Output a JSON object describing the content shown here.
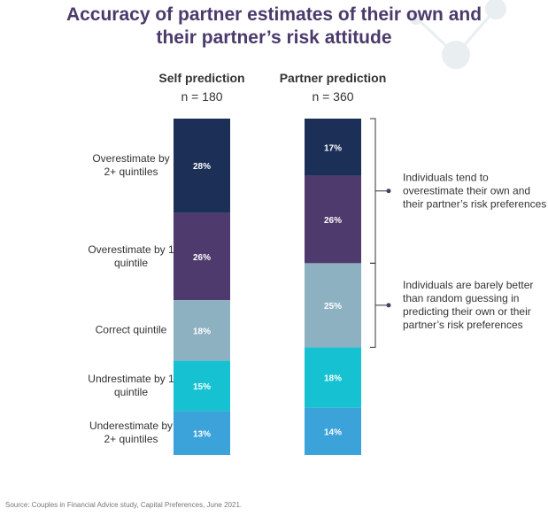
{
  "chart_data": {
    "type": "stacked-bar",
    "title": [
      "Accuracy of partner estimates of their own and",
      "their partner’s risk attitude"
    ],
    "categories": [
      "Self prediction",
      "Partner prediction"
    ],
    "category_notes": [
      "n =  180",
      "n =  360"
    ],
    "ylim": [
      0,
      100
    ],
    "series": [
      {
        "name": "Overestimate by 2+ quintiles",
        "color": "#1b2f57",
        "values": [
          28,
          17
        ],
        "value_labels": [
          "28%",
          "17%"
        ]
      },
      {
        "name": "Overestimate by 1 quintile",
        "color": "#4e3a6c",
        "values": [
          26,
          26
        ],
        "value_labels": [
          "26%",
          "26%"
        ]
      },
      {
        "name": "Correct quintile",
        "color": "#8eb1c2",
        "values": [
          18,
          25
        ],
        "value_labels": [
          "18%",
          "25%"
        ]
      },
      {
        "name": "Undrestimate by 1 quintile",
        "color": "#16c1d1",
        "values": [
          15,
          18
        ],
        "value_labels": [
          "15%",
          "18%"
        ]
      },
      {
        "name": "Underestimate by 2+ quintiles",
        "color": "#3ba2da",
        "values": [
          13,
          14
        ],
        "value_labels": [
          "13%",
          "14%"
        ]
      }
    ],
    "annotations": [
      "Individuals tend to overestimate their own and their partner’s risk preferences",
      "Individuals are barely better than random guessing in predicting their own or their partner’s risk preferences"
    ],
    "source": "Source: Couples in Financial Advice study, Capital Preferences, June 2021."
  }
}
